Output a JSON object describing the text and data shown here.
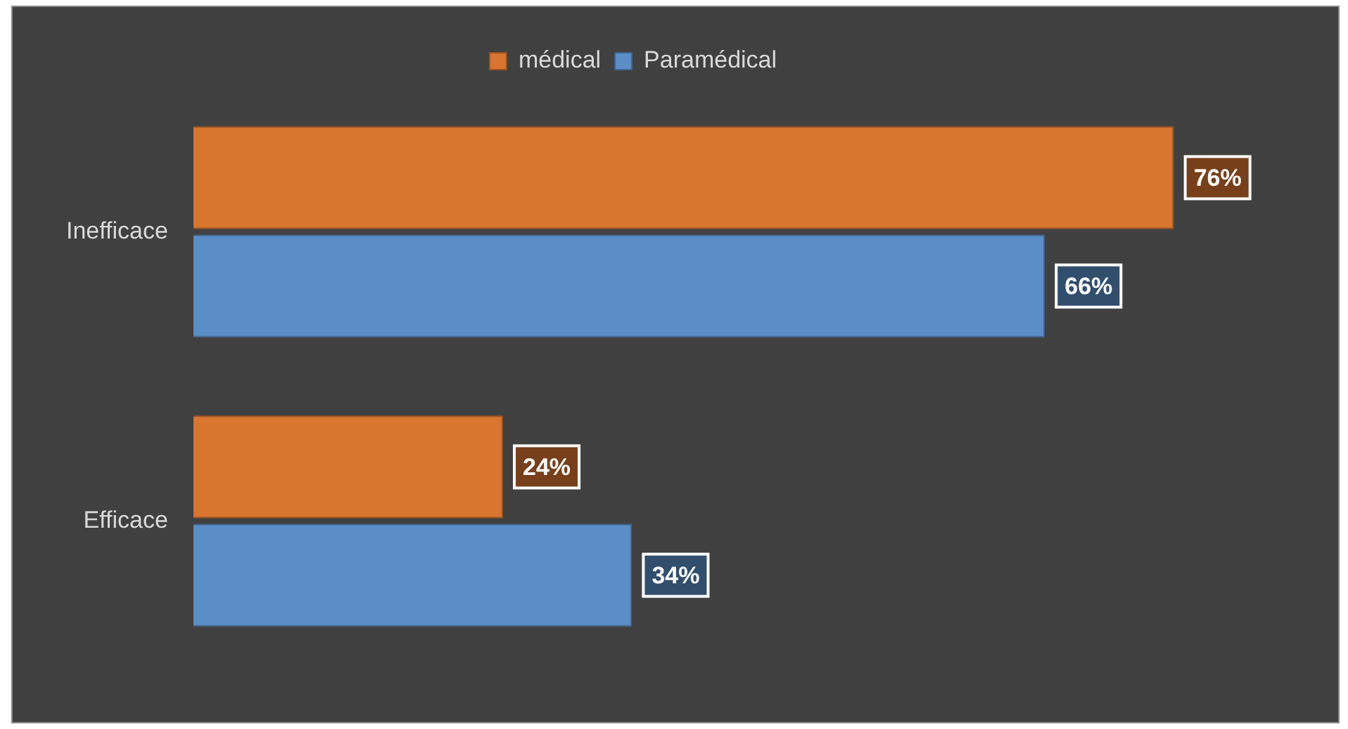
{
  "chart_data": {
    "type": "bar",
    "orientation": "horizontal",
    "categories": [
      "Inefficace",
      "Efficace"
    ],
    "series": [
      {
        "name": "médical",
        "color": "#d9752f",
        "values": [
          76,
          24
        ],
        "value_labels": [
          "76%",
          "24%"
        ]
      },
      {
        "name": "Paramédical",
        "color": "#5b8ec6",
        "values": [
          66,
          34
        ],
        "value_labels": [
          "66%",
          "34%"
        ]
      }
    ],
    "legend": "top",
    "grid": false
  }
}
